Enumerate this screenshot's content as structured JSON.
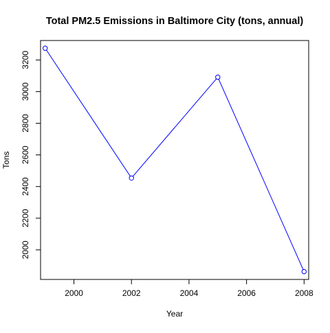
{
  "chart_data": {
    "type": "line",
    "title": "Total PM2.5 Emissions in Baltimore City (tons, annual)",
    "xlabel": "Year",
    "ylabel": "Tons",
    "x": [
      1999,
      2002,
      2005,
      2008
    ],
    "series": [
      {
        "values": [
          3274.2,
          2453.9,
          3091.4,
          1862.3
        ],
        "color": "#0000ff",
        "marker": "open-circle"
      }
    ],
    "xlim": [
      1998.84,
      2008.16
    ],
    "ylim": [
      1813.0,
      3323.0
    ],
    "xticks": [
      2000,
      2002,
      2004,
      2006,
      2008
    ],
    "yticks": [
      2000,
      2200,
      2400,
      2600,
      2800,
      3000,
      3200
    ],
    "grid": false,
    "legend": "none"
  }
}
